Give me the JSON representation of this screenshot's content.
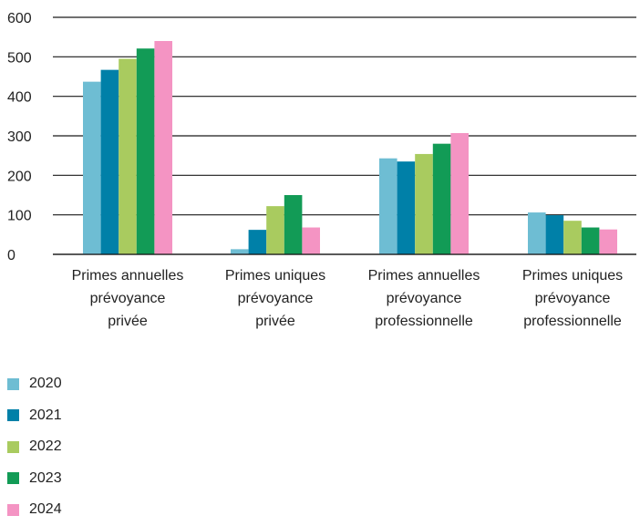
{
  "chart_data": {
    "type": "bar",
    "categories": [
      [
        "Primes annuelles",
        "prévoyance",
        "privée"
      ],
      [
        "Primes uniques",
        "prévoyance",
        "privée"
      ],
      [
        "Primes annuelles",
        "prévoyance",
        "professionnelle"
      ],
      [
        "Primes uniques",
        "prévoyance",
        "professionnelle"
      ]
    ],
    "series": [
      {
        "name": "2020",
        "color": "#6ebdd3",
        "values": [
          437,
          13,
          243,
          106
        ]
      },
      {
        "name": "2021",
        "color": "#0080a8",
        "values": [
          467,
          62,
          235,
          99
        ]
      },
      {
        "name": "2022",
        "color": "#a9cb5f",
        "values": [
          495,
          122,
          254,
          85
        ]
      },
      {
        "name": "2023",
        "color": "#129b56",
        "values": [
          521,
          150,
          280,
          68
        ]
      },
      {
        "name": "2024",
        "color": "#f494c3",
        "values": [
          540,
          68,
          307,
          63
        ]
      }
    ],
    "ylim": [
      0,
      600
    ],
    "yticks": [
      0,
      100,
      200,
      300,
      400,
      500,
      600
    ],
    "grid": true,
    "legend": "bottom-left"
  }
}
